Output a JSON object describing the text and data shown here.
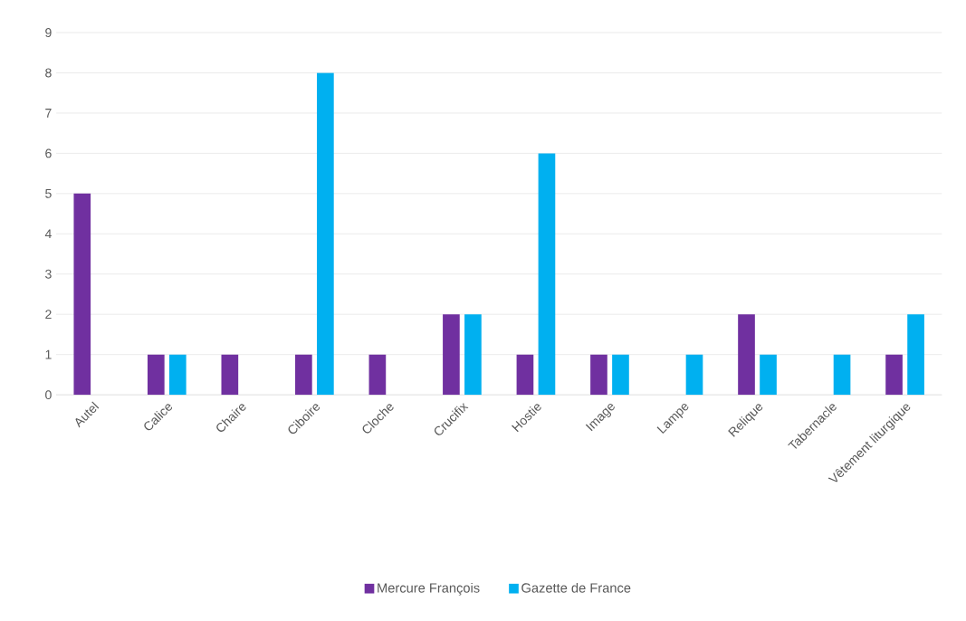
{
  "chart_data": {
    "type": "bar",
    "categories": [
      "Autel",
      "Calice",
      "Chaire",
      "Ciboire",
      "Cloche",
      "Crucifix",
      "Hostie",
      "Image",
      "Lampe",
      "Relique",
      "Tabernacle",
      "Vêtement liturgique"
    ],
    "series": [
      {
        "name": "Mercure François",
        "color": "#7030a0",
        "values": [
          5,
          1,
          1,
          1,
          1,
          2,
          1,
          1,
          null,
          2,
          null,
          1
        ]
      },
      {
        "name": "Gazette de France",
        "color": "#00b0f0",
        "values": [
          null,
          1,
          null,
          8,
          null,
          2,
          6,
          1,
          1,
          1,
          1,
          2
        ]
      }
    ],
    "ylim": [
      0,
      9
    ],
    "yticks": [
      0,
      1,
      2,
      3,
      4,
      5,
      6,
      7,
      8,
      9
    ],
    "grid": "y",
    "legend": "bottom"
  }
}
